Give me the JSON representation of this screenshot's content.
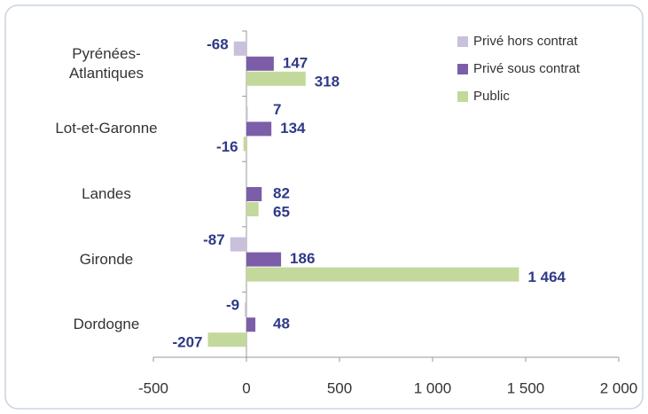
{
  "chart_data": {
    "type": "hbar",
    "categories": [
      "Pyrénées-\nAtlantiques",
      "Lot-et-Garonne",
      "Landes",
      "Gironde",
      "Dordogne"
    ],
    "series": [
      {
        "name": "Privé hors contrat",
        "color": "#c9c0dc",
        "values": [
          -68,
          7,
          null,
          -87,
          -9
        ]
      },
      {
        "name": "Privé sous contrat",
        "color": "#7b5ea7",
        "values": [
          147,
          134,
          82,
          186,
          48
        ]
      },
      {
        "name": "Public",
        "color": "#c3d89b",
        "values": [
          318,
          -16,
          65,
          1464,
          -207
        ],
        "value_labels": [
          "318",
          "-16",
          "65",
          "1 464",
          "-207"
        ]
      }
    ],
    "xlim": [
      -500,
      2000
    ],
    "xticks": [
      -500,
      0,
      500,
      {
        "value": 1000,
        "label": "1 000"
      },
      {
        "value": 1500,
        "label": "1 500"
      },
      {
        "value": 2000,
        "label": "2 000"
      }
    ],
    "legend": "top-right"
  }
}
